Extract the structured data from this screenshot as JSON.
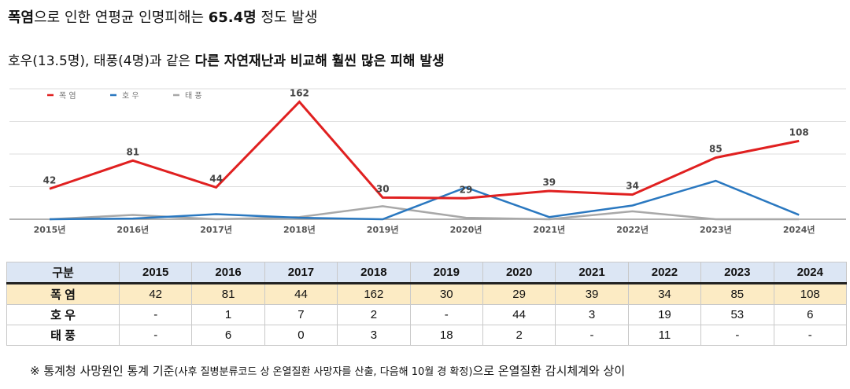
{
  "title": {
    "pre": "폭염",
    "mid": "으로 인한 연평균 인명피해는 ",
    "bold": "65.4명",
    "post": " 정도 발생"
  },
  "subtitle": {
    "pre": "호우(13.5명), 태풍(4명)과 같은 ",
    "bold": "다른 자연재난과 비교해 훨씬 많은 피해 발생"
  },
  "chart_data": {
    "type": "line",
    "x": [
      "2015년",
      "2016년",
      "2017년",
      "2018년",
      "2019년",
      "2020년",
      "2021년",
      "2022년",
      "2023년",
      "2024년"
    ],
    "ylim": [
      0,
      180
    ],
    "grid": true,
    "legend": "top-left",
    "series": [
      {
        "name": "폭 염",
        "color": "#e02020",
        "values": [
          42,
          81,
          44,
          162,
          30,
          29,
          39,
          34,
          85,
          108
        ],
        "labels": true
      },
      {
        "name": "호 우",
        "color": "#2a78c0",
        "values": [
          0,
          1,
          7,
          2,
          0,
          44,
          3,
          19,
          53,
          6
        ]
      },
      {
        "name": "태 풍",
        "color": "#a8a8a8",
        "values": [
          0,
          6,
          0,
          3,
          18,
          2,
          0,
          11,
          0,
          0
        ]
      }
    ]
  },
  "table": {
    "header": [
      "구분",
      "2015",
      "2016",
      "2017",
      "2018",
      "2019",
      "2020",
      "2021",
      "2022",
      "2023",
      "2024"
    ],
    "rows": [
      {
        "label": "폭 염",
        "cells": [
          "42",
          "81",
          "44",
          "162",
          "30",
          "29",
          "39",
          "34",
          "85",
          "108"
        ]
      },
      {
        "label": "호 우",
        "cells": [
          "-",
          "1",
          "7",
          "2",
          "-",
          "44",
          "3",
          "19",
          "53",
          "6"
        ]
      },
      {
        "label": "태 풍",
        "cells": [
          "-",
          "6",
          "0",
          "3",
          "18",
          "2",
          "-",
          "11",
          "-",
          "-"
        ]
      }
    ]
  },
  "note": {
    "pre": "※ 통계청 사망원인 통계 기준",
    "small": "(사후 질병분류코드 상 온열질환 사망자를 산출, 다음해 10월 경 확정)",
    "post": "으로 온열질환 감시체계와 상이"
  }
}
